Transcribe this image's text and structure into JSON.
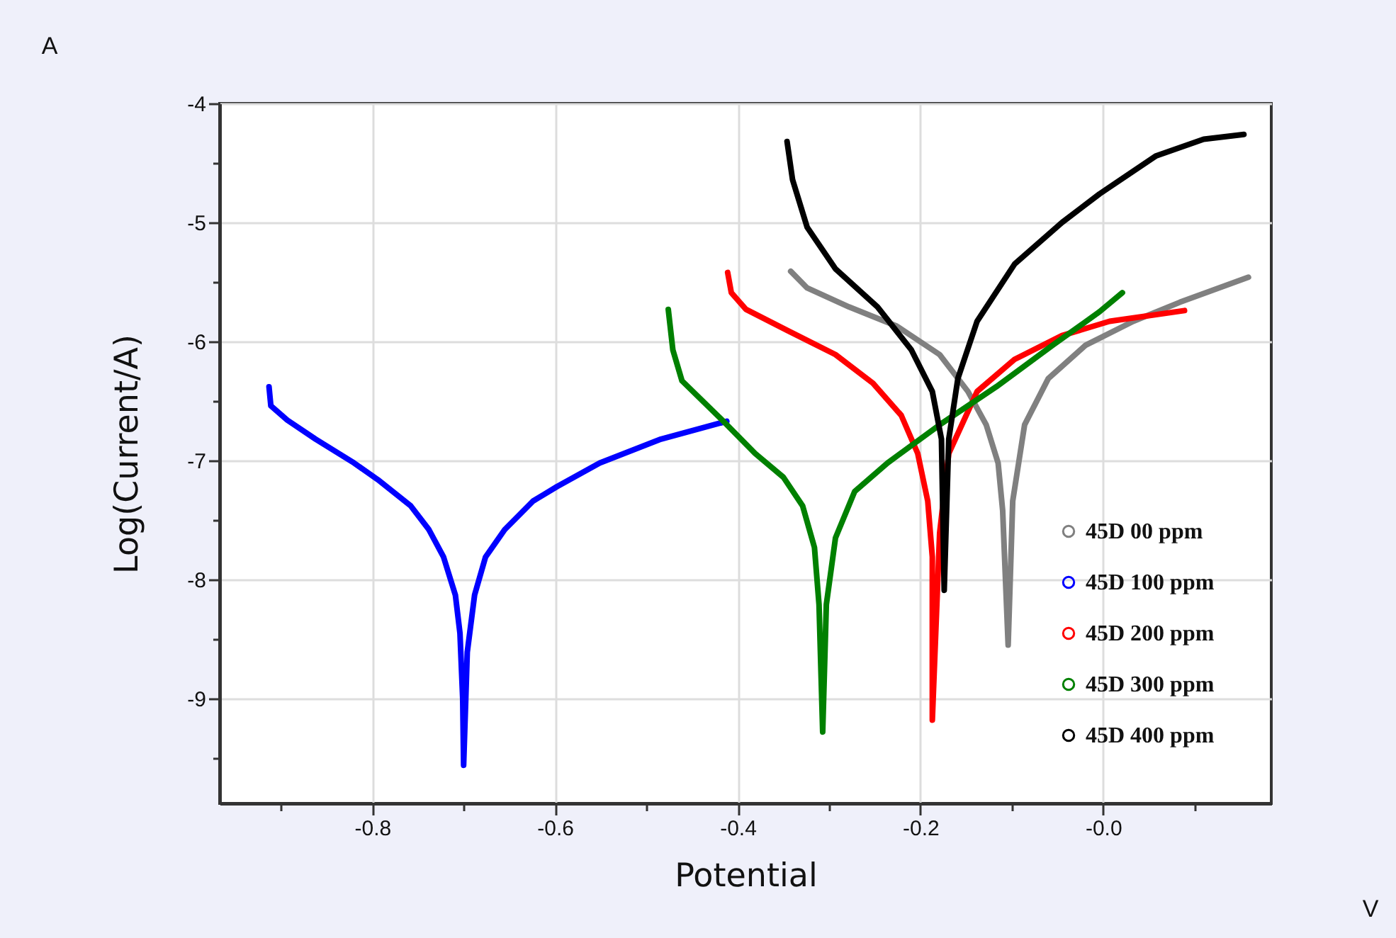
{
  "chart_data": {
    "type": "line",
    "xlabel": "Potential",
    "ylabel": "Log(Current/A)",
    "annotations": [
      "A",
      "V"
    ],
    "xlim": [
      -0.967,
      0.184
    ],
    "ylim": [
      -9.88,
      -4
    ],
    "xticks": [
      {
        "value": -0.9,
        "label": null
      },
      -0.8,
      {
        "value": -0.7,
        "label": null
      },
      -0.6,
      {
        "value": -0.5,
        "label": null
      },
      -0.4,
      {
        "value": -0.3,
        "label": null
      },
      -0.2,
      {
        "value": -0.1,
        "label": null
      },
      {
        "value": 0,
        "label": "-0.0"
      },
      {
        "value": 0.1,
        "label": null
      }
    ],
    "yticks": [
      -4,
      {
        "value": -4.5,
        "label": null
      },
      -5,
      {
        "value": -5.5,
        "label": null
      },
      -6,
      {
        "value": -6.5,
        "label": null
      },
      -7,
      {
        "value": -7.5,
        "label": null
      },
      -8,
      {
        "value": -8.5,
        "label": null
      },
      -9,
      {
        "value": -9.5,
        "label": null
      }
    ],
    "grid": true,
    "legend": "bottom right",
    "line_style": "solid",
    "series": [
      {
        "name": "45D 00 ppm",
        "color": "#808080",
        "x": [
          -0.342,
          -0.324,
          -0.278,
          -0.226,
          -0.179,
          -0.148,
          -0.128,
          -0.115,
          -0.11,
          -0.104,
          -0.099,
          -0.086,
          -0.06,
          -0.019,
          0.033,
          0.084,
          0.159
        ],
        "values": [
          -5.41,
          -5.55,
          -5.71,
          -5.87,
          -6.11,
          -6.42,
          -6.7,
          -7.02,
          -7.42,
          -8.55,
          -7.34,
          -6.7,
          -6.31,
          -6.03,
          -5.83,
          -5.67,
          -5.46
        ]
      },
      {
        "name": "45D 100 ppm",
        "color": "#0000ff",
        "x": [
          -0.913,
          -0.911,
          -0.893,
          -0.862,
          -0.82,
          -0.794,
          -0.758,
          -0.738,
          -0.722,
          -0.709,
          -0.704,
          -0.701,
          -0.7,
          -0.696,
          -0.688,
          -0.676,
          -0.655,
          -0.624,
          -0.598,
          -0.551,
          -0.484,
          -0.412
        ],
        "values": [
          -6.38,
          -6.54,
          -6.66,
          -6.82,
          -7.02,
          -7.16,
          -7.38,
          -7.58,
          -7.81,
          -8.13,
          -8.45,
          -9.0,
          -9.56,
          -8.61,
          -8.13,
          -7.81,
          -7.58,
          -7.34,
          -7.22,
          -7.02,
          -6.82,
          -6.67
        ]
      },
      {
        "name": "45D 200 ppm",
        "color": "#ff0000",
        "x": [
          -0.411,
          -0.407,
          -0.391,
          -0.345,
          -0.293,
          -0.252,
          -0.221,
          -0.203,
          -0.192,
          -0.187,
          -0.187,
          -0.179,
          -0.169,
          -0.138,
          -0.097,
          -0.045,
          0.007,
          0.089
        ],
        "values": [
          -5.42,
          -5.59,
          -5.73,
          -5.91,
          -6.11,
          -6.35,
          -6.62,
          -6.94,
          -7.34,
          -7.81,
          -9.18,
          -7.61,
          -6.94,
          -6.42,
          -6.15,
          -5.95,
          -5.83,
          -5.74
        ]
      },
      {
        "name": "45D 300 ppm",
        "color": "#008000",
        "x": [
          -0.476,
          -0.471,
          -0.461,
          -0.417,
          -0.381,
          -0.35,
          -0.329,
          -0.316,
          -0.311,
          -0.307,
          -0.303,
          -0.293,
          -0.272,
          -0.236,
          -0.179,
          -0.117,
          -0.055,
          -0.004,
          0.021
        ],
        "values": [
          -5.73,
          -6.07,
          -6.33,
          -6.66,
          -6.94,
          -7.14,
          -7.38,
          -7.73,
          -8.21,
          -9.28,
          -8.21,
          -7.65,
          -7.26,
          -7.02,
          -6.7,
          -6.38,
          -6.03,
          -5.75,
          -5.59
        ]
      },
      {
        "name": "45D 400 ppm",
        "color": "#000000",
        "x": [
          -0.346,
          -0.34,
          -0.324,
          -0.293,
          -0.247,
          -0.21,
          -0.187,
          -0.177,
          -0.174,
          -0.169,
          -0.159,
          -0.138,
          -0.097,
          -0.045,
          -0.004,
          0.058,
          0.11,
          0.154
        ],
        "values": [
          -4.32,
          -4.64,
          -5.04,
          -5.39,
          -5.71,
          -6.07,
          -6.42,
          -6.82,
          -8.09,
          -6.82,
          -6.31,
          -5.83,
          -5.35,
          -5.0,
          -4.76,
          -4.44,
          -4.3,
          -4.26
        ]
      }
    ]
  }
}
